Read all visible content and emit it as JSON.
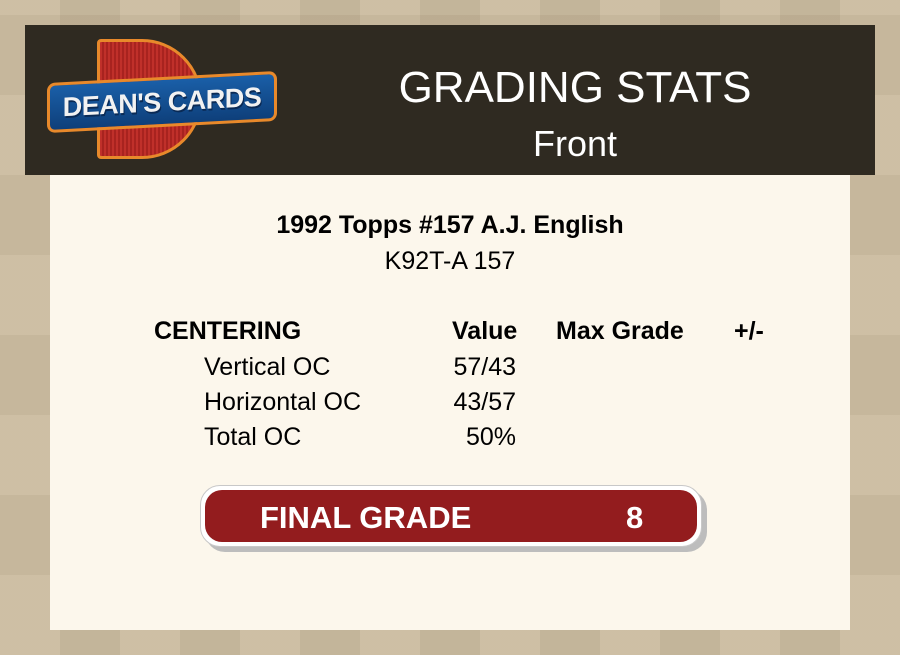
{
  "header": {
    "logo_text": "DEAN'S CARDS",
    "logo_letter": "D",
    "title": "GRADING STATS",
    "subtitle": "Front"
  },
  "card": {
    "title": "1992 Topps #157 A.J. English",
    "code": "K92T-A 157"
  },
  "centering": {
    "columns": [
      "CENTERING",
      "Value",
      "Max Grade",
      "+/-"
    ],
    "rows": [
      {
        "label": "Vertical OC",
        "value": "57/43"
      },
      {
        "label": "Horizontal OC",
        "value": "43/57"
      },
      {
        "label": "Total OC",
        "value": "50%"
      }
    ]
  },
  "final_grade": {
    "label": "FINAL GRADE",
    "value": "8"
  },
  "colors": {
    "header_bg": "#2f2a21",
    "panel_bg": "#fcf7ec",
    "grade_bar": "#931c1e"
  }
}
